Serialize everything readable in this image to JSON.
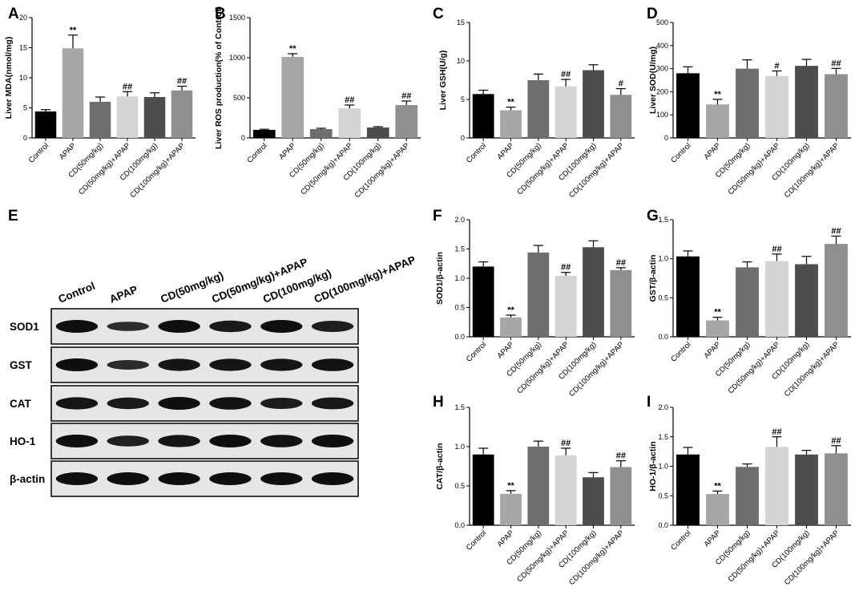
{
  "colors": [
    "#000000",
    "#a6a6a6",
    "#6e6e6e",
    "#d4d4d4",
    "#4d4d4d",
    "#8f8f8f"
  ],
  "chart_data": [
    {
      "panel": "A",
      "type": "bar",
      "ylabel": "Liver MDA(nmol/mg)",
      "ylim": [
        0,
        20
      ],
      "yticks": [
        0,
        5,
        10,
        15,
        20
      ],
      "categories": [
        "Control",
        "APAP",
        "CD(50mg/kg)",
        "CD(50mg/kg)+APAP",
        "CD(100mg/kg)",
        "CD(100mg/kg)+APAP"
      ],
      "values": [
        4.4,
        14.9,
        6.0,
        6.9,
        6.8,
        7.9
      ],
      "errors": [
        0.3,
        2.2,
        0.8,
        0.8,
        0.7,
        0.7
      ],
      "annotations": [
        "",
        "**",
        "",
        "##",
        "",
        "##"
      ]
    },
    {
      "panel": "B",
      "type": "bar",
      "ylabel": "Liver ROS production(% of Control)",
      "ylim": [
        0,
        1500
      ],
      "yticks": [
        0,
        500,
        1000,
        1500
      ],
      "categories": [
        "Control",
        "APAP",
        "CD(50mg/kg)",
        "CD(50mg/kg)+APAP",
        "CD(100mg/kg)",
        "CD(100mg/kg)+APAP"
      ],
      "values": [
        100,
        1010,
        110,
        370,
        130,
        410
      ],
      "errors": [
        8,
        40,
        10,
        40,
        10,
        50
      ],
      "annotations": [
        "",
        "**",
        "",
        "##",
        "",
        "##"
      ]
    },
    {
      "panel": "C",
      "type": "bar",
      "ylabel": "Liver GSH(U/g)",
      "ylim": [
        0,
        15
      ],
      "yticks": [
        0,
        5,
        10,
        15
      ],
      "categories": [
        "Control",
        "APAP",
        "CD(50mg/kg)",
        "CD(50mg/kg)+APAP",
        "CD(100mg/kg)",
        "CD(100mg/kg)+APAP"
      ],
      "values": [
        5.7,
        3.6,
        7.5,
        6.7,
        8.8,
        5.6
      ],
      "errors": [
        0.5,
        0.4,
        0.8,
        0.9,
        0.7,
        0.8
      ],
      "annotations": [
        "",
        "**",
        "",
        "##",
        "",
        "#"
      ]
    },
    {
      "panel": "D",
      "type": "bar",
      "ylabel": "Liver SOD(U/mg)",
      "ylim": [
        0,
        500
      ],
      "yticks": [
        0,
        100,
        200,
        300,
        400,
        500
      ],
      "categories": [
        "Control",
        "APAP",
        "CD(50mg/kg)",
        "CD(50mg/kg)+APAP",
        "CD(100mg/kg)",
        "CD(100mg/kg)+APAP"
      ],
      "values": [
        280,
        145,
        300,
        268,
        312,
        276
      ],
      "errors": [
        28,
        22,
        38,
        22,
        28,
        25
      ],
      "annotations": [
        "",
        "**",
        "",
        "#",
        "",
        "##"
      ]
    },
    {
      "panel": "F",
      "type": "bar",
      "ylabel": "SOD1/β-actin",
      "ylim": [
        0,
        2.0
      ],
      "yticks": [
        0.0,
        0.5,
        1.0,
        1.5,
        2.0
      ],
      "categories": [
        "Control",
        "APAP",
        "CD(50mg/kg)",
        "CD(50mg/kg)+APAP",
        "CD(100mg/kg)",
        "CD(100mg/kg)+APAP"
      ],
      "values": [
        1.2,
        0.33,
        1.44,
        1.04,
        1.53,
        1.14
      ],
      "errors": [
        0.08,
        0.04,
        0.12,
        0.06,
        0.11,
        0.04
      ],
      "annotations": [
        "",
        "**",
        "",
        "##",
        "",
        "##"
      ]
    },
    {
      "panel": "G",
      "type": "bar",
      "ylabel": "GST/β-actin",
      "ylim": [
        0,
        1.5
      ],
      "yticks": [
        0.0,
        0.5,
        1.0,
        1.5
      ],
      "categories": [
        "Control",
        "APAP",
        "CD(50mg/kg)",
        "CD(50mg/kg)+APAP",
        "CD(100mg/kg)",
        "CD(100mg/kg)+APAP"
      ],
      "values": [
        1.03,
        0.21,
        0.89,
        0.97,
        0.93,
        1.19
      ],
      "errors": [
        0.07,
        0.04,
        0.07,
        0.09,
        0.1,
        0.1
      ],
      "annotations": [
        "",
        "**",
        "",
        "##",
        "",
        "##"
      ]
    },
    {
      "panel": "H",
      "type": "bar",
      "ylabel": "CAT/β-actin",
      "ylim": [
        0,
        1.5
      ],
      "yticks": [
        0.0,
        0.5,
        1.0,
        1.5
      ],
      "categories": [
        "Control",
        "APAP",
        "CD(50mg/kg)",
        "CD(50mg/kg)+APAP",
        "CD(100mg/kg)",
        "CD(100mg/kg)+APAP"
      ],
      "values": [
        0.9,
        0.4,
        1.0,
        0.89,
        0.61,
        0.74
      ],
      "errors": [
        0.08,
        0.04,
        0.07,
        0.09,
        0.06,
        0.08
      ],
      "annotations": [
        "",
        "**",
        "",
        "##",
        "",
        "##"
      ]
    },
    {
      "panel": "I",
      "type": "bar",
      "ylabel": "HO-1/β-actin",
      "ylim": [
        0,
        2.0
      ],
      "yticks": [
        0.0,
        0.5,
        1.0,
        1.5,
        2.0
      ],
      "categories": [
        "Control",
        "APAP",
        "CD(50mg/kg)",
        "CD(50mg/kg)+APAP",
        "CD(100mg/kg)",
        "CD(100mg/kg)+APAP"
      ],
      "values": [
        1.2,
        0.53,
        0.99,
        1.33,
        1.2,
        1.22
      ],
      "errors": [
        0.12,
        0.05,
        0.05,
        0.17,
        0.07,
        0.13
      ],
      "annotations": [
        "",
        "**",
        "",
        "##",
        "",
        "##"
      ]
    }
  ],
  "blot": {
    "panel": "E",
    "lanes": [
      "Control",
      "APAP",
      "CD(50mg/kg)",
      "CD(50mg/kg)+APAP",
      "CD(100mg/kg)",
      "CD(100mg/kg)+APAP"
    ],
    "rows": [
      {
        "label": "SOD1",
        "intensity": [
          1.0,
          0.45,
          1.0,
          0.8,
          1.0,
          0.75
        ]
      },
      {
        "label": "GST",
        "intensity": [
          1.0,
          0.5,
          0.9,
          0.9,
          0.9,
          0.95
        ]
      },
      {
        "label": "CAT",
        "intensity": [
          0.9,
          0.8,
          1.0,
          0.95,
          0.75,
          0.85
        ]
      },
      {
        "label": "HO-1",
        "intensity": [
          1.0,
          0.7,
          0.9,
          1.0,
          0.95,
          1.0
        ]
      },
      {
        "label": "β-actin",
        "intensity": [
          1.0,
          1.0,
          1.0,
          1.0,
          1.0,
          1.0
        ]
      }
    ]
  }
}
